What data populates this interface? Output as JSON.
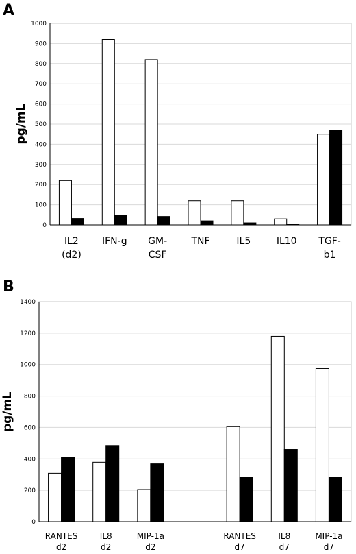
{
  "chart_data": [
    {
      "type": "bar",
      "panel_label": "A",
      "ylabel": "pg/mL",
      "ylim": [
        0,
        1000
      ],
      "yticks": [
        "0",
        "100",
        "200",
        "300",
        "400",
        "500",
        "600",
        "700",
        "800",
        "900",
        "1000"
      ],
      "grid": true,
      "categories": [
        [
          "IL2",
          "(d2)"
        ],
        [
          "IFN-g"
        ],
        [
          "GM-",
          "CSF"
        ],
        [
          "TNF"
        ],
        [
          "IL5"
        ],
        [
          "IL10"
        ],
        [
          "TGF-",
          "b1"
        ]
      ],
      "series": [
        {
          "fill": "#ffffff",
          "values": [
            220,
            920,
            820,
            120,
            120,
            30,
            450
          ]
        },
        {
          "fill": "#000000",
          "values": [
            32,
            48,
            42,
            20,
            10,
            5,
            470
          ]
        }
      ]
    },
    {
      "type": "bar",
      "panel_label": "B",
      "ylabel": "pg/mL",
      "ylim": [
        0,
        1400
      ],
      "yticks": [
        "0",
        "200",
        "400",
        "600",
        "800",
        "1000",
        "1200",
        "1400"
      ],
      "grid": true,
      "categories": [
        [
          "RANTES",
          "d2"
        ],
        [
          "IL8",
          "d2"
        ],
        [
          "MIP-1a",
          "d2"
        ],
        [
          "",
          ""
        ],
        [
          "RANTES",
          "d7"
        ],
        [
          "IL8",
          "d7"
        ],
        [
          "MIP-1a",
          "d7"
        ]
      ],
      "series": [
        {
          "fill": "#ffffff",
          "values": [
            308,
            378,
            205,
            null,
            605,
            1180,
            975
          ]
        },
        {
          "fill": "#000000",
          "values": [
            408,
            485,
            368,
            null,
            283,
            460,
            285
          ]
        }
      ]
    }
  ]
}
